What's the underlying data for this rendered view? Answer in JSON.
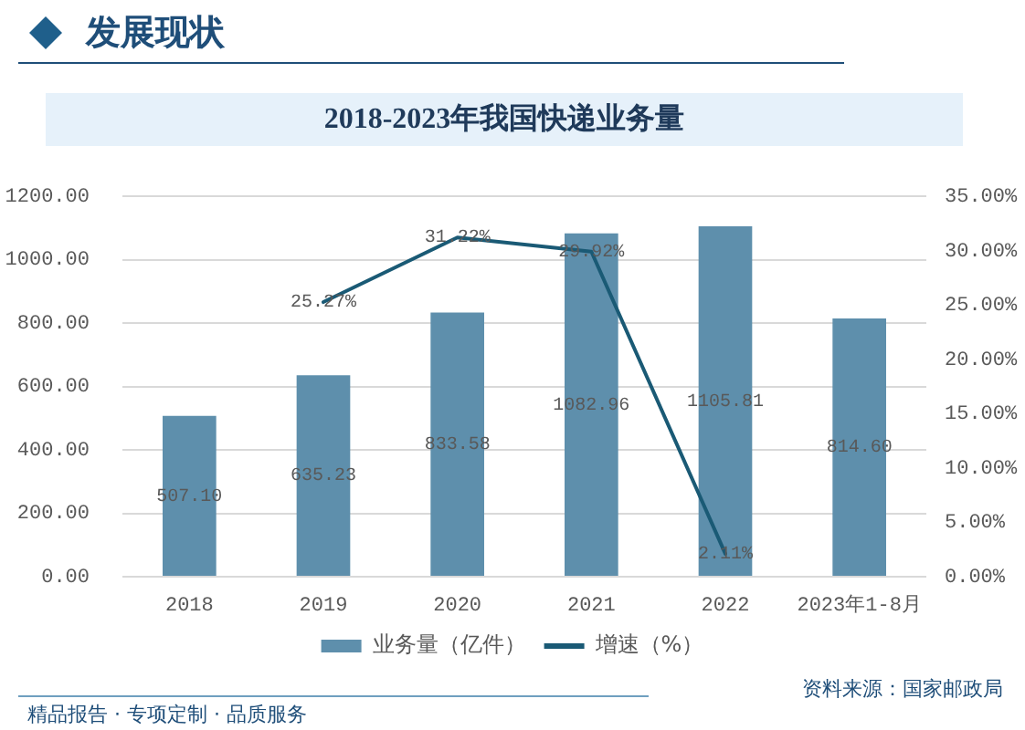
{
  "chart_data": {
    "type": "bar",
    "title": "2018-2023年我国快递业务量",
    "categories": [
      "2018",
      "2019",
      "2020",
      "2021",
      "2022",
      "2023年1-8月"
    ],
    "series": [
      {
        "name": "业务量（亿件）",
        "color": "#5e8fac",
        "values": [
          507.1,
          635.23,
          833.58,
          1082.96,
          1105.81,
          814.6
        ],
        "value_labels": [
          "507.10",
          "635.23",
          "833.58",
          "1082.96",
          "1105.81",
          "814.60"
        ]
      },
      {
        "name": "增速（%）",
        "type": "line",
        "axis": "y2",
        "color": "#1a5a75",
        "values": [
          null,
          25.27,
          31.22,
          29.92,
          2.11,
          null
        ],
        "value_labels": [
          null,
          "25.27%",
          "31.22%",
          "29.92%",
          "2.11%",
          null
        ]
      }
    ],
    "ylim": [
      0,
      1200
    ],
    "yticks": [
      {
        "value": 0,
        "label": "0.00"
      },
      {
        "value": 200,
        "label": "200.00"
      },
      {
        "value": 400,
        "label": "400.00"
      },
      {
        "value": 600,
        "label": "600.00"
      },
      {
        "value": 800,
        "label": "800.00"
      },
      {
        "value": 1000,
        "label": "1000.00"
      },
      {
        "value": 1200,
        "label": "1200.00"
      }
    ],
    "y2lim": [
      0,
      35
    ],
    "y2ticks": [
      {
        "value": 0,
        "label": "0.00%"
      },
      {
        "value": 5,
        "label": "5.00%"
      },
      {
        "value": 10,
        "label": "10.00%"
      },
      {
        "value": 15,
        "label": "15.00%"
      },
      {
        "value": 20,
        "label": "20.00%"
      },
      {
        "value": 25,
        "label": "25.00%"
      },
      {
        "value": 30,
        "label": "30.00%"
      },
      {
        "value": 35,
        "label": "35.00%"
      }
    ],
    "grid": "y",
    "legend": "bottom",
    "marker": "none",
    "annotations": [
      "发展现状",
      "资料来源：国家邮政局",
      "精品报告 · 专项定制 · 品质服务"
    ]
  }
}
